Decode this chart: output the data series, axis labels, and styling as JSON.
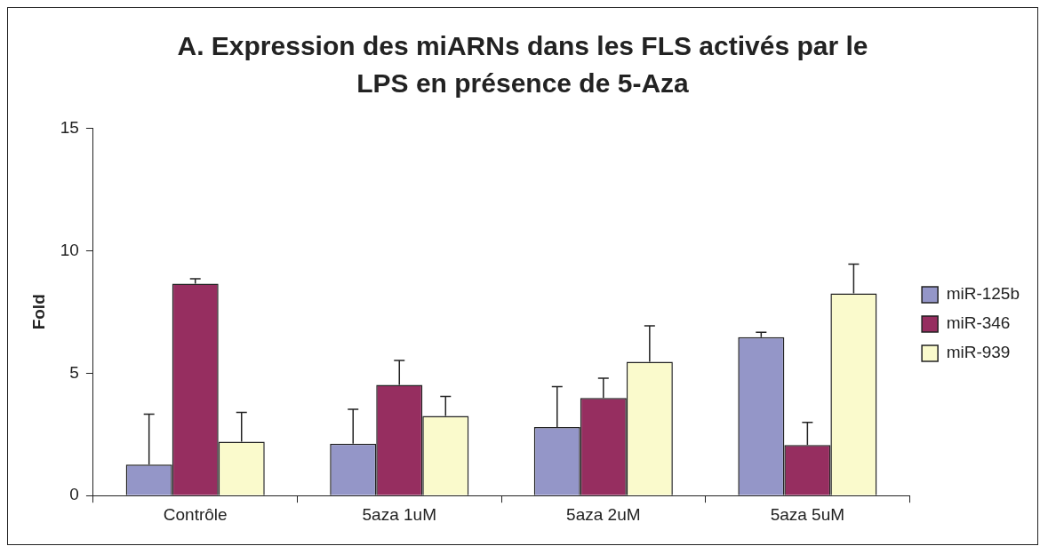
{
  "chart_data": {
    "type": "bar",
    "title": "A.   Expression des miARNs dans les FLS activés par le LPS en présence de 5-Aza",
    "ylabel": "Fold",
    "categories": [
      "Contrôle",
      "5aza 1uM",
      "5aza 2uM",
      "5aza 5uM"
    ],
    "series": [
      {
        "name": "miR-125b",
        "color": "#9496c8",
        "values": [
          1.27,
          2.12,
          2.8,
          6.47
        ],
        "errors": [
          [
            1.27,
            3.32
          ],
          [
            2.12,
            3.52
          ],
          [
            2.8,
            4.45
          ],
          [
            6.47,
            6.67
          ]
        ]
      },
      {
        "name": "miR-346",
        "color": "#962e60",
        "values": [
          8.65,
          4.52,
          3.99,
          2.06
        ],
        "errors": [
          [
            8.65,
            8.85
          ],
          [
            4.52,
            5.52
          ],
          [
            3.99,
            4.79
          ],
          [
            2.06,
            2.99
          ]
        ]
      },
      {
        "name": "miR-939",
        "color": "#fafacc",
        "values": [
          2.2,
          3.25,
          5.46,
          8.25
        ],
        "errors": [
          [
            2.2,
            3.4
          ],
          [
            3.25,
            4.05
          ],
          [
            5.46,
            6.93
          ],
          [
            8.25,
            9.45
          ]
        ]
      }
    ],
    "ylim": [
      0,
      15
    ],
    "yticks": [
      0,
      5,
      10,
      15
    ],
    "grid": false,
    "legend": "right"
  }
}
